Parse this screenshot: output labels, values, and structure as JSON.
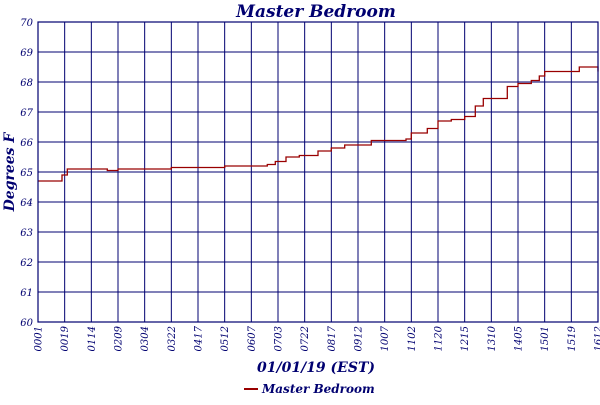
{
  "chart_data": {
    "type": "line",
    "title": "Master Bedroom",
    "xlabel": "01/01/19 (EST)",
    "ylabel": "Degrees F",
    "ylim": [
      60,
      70
    ],
    "yticks": [
      "60",
      "61",
      "62",
      "63",
      "64",
      "65",
      "66",
      "67",
      "68",
      "69",
      "70"
    ],
    "xticks": [
      "00:01",
      "00:19",
      "01:14",
      "02:09",
      "03:04",
      "03:22",
      "04:17",
      "05:12",
      "06:07",
      "07:03",
      "07:22",
      "08:17",
      "09:12",
      "10:07",
      "11:02",
      "11:20",
      "12:15",
      "13:10",
      "14:05",
      "15:01",
      "15:19",
      "16:12"
    ],
    "grid": true,
    "legend": "bottom-center",
    "colors": {
      "series": "#990000",
      "grid": "#000070",
      "text": "#000070"
    },
    "series": [
      {
        "name": "Master Bedroom",
        "points": [
          [
            0.0,
            64.7
          ],
          [
            0.8,
            64.7
          ],
          [
            0.9,
            64.9
          ],
          [
            1.1,
            65.1
          ],
          [
            2.0,
            65.1
          ],
          [
            2.6,
            65.05
          ],
          [
            3.0,
            65.1
          ],
          [
            4.0,
            65.1
          ],
          [
            5.0,
            65.15
          ],
          [
            6.0,
            65.15
          ],
          [
            7.0,
            65.2
          ],
          [
            8.0,
            65.2
          ],
          [
            8.6,
            65.25
          ],
          [
            8.9,
            65.35
          ],
          [
            9.3,
            65.5
          ],
          [
            9.8,
            65.55
          ],
          [
            10.5,
            65.7
          ],
          [
            11.0,
            65.8
          ],
          [
            11.5,
            65.9
          ],
          [
            12.0,
            65.9
          ],
          [
            12.5,
            66.05
          ],
          [
            13.0,
            66.05
          ],
          [
            13.8,
            66.1
          ],
          [
            14.0,
            66.3
          ],
          [
            14.6,
            66.45
          ],
          [
            15.0,
            66.7
          ],
          [
            15.5,
            66.75
          ],
          [
            16.0,
            66.85
          ],
          [
            16.4,
            67.2
          ],
          [
            16.7,
            67.45
          ],
          [
            17.3,
            67.45
          ],
          [
            17.6,
            67.85
          ],
          [
            18.0,
            67.95
          ],
          [
            18.5,
            68.05
          ],
          [
            18.8,
            68.2
          ],
          [
            19.0,
            68.35
          ],
          [
            19.4,
            68.35
          ],
          [
            20.0,
            68.35
          ],
          [
            20.3,
            68.5
          ],
          [
            20.8,
            68.5
          ],
          [
            21.0,
            68.35
          ]
        ]
      }
    ]
  }
}
